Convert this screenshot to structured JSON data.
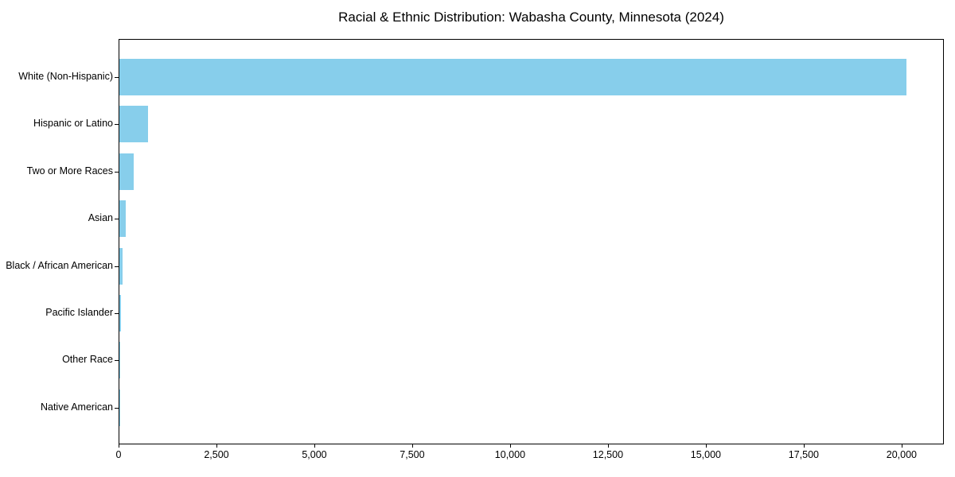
{
  "page": {
    "background_color": "#ffffff"
  },
  "chart_data": {
    "type": "bar",
    "orientation": "horizontal",
    "title": "Racial & Ethnic Distribution: Wabasha County, Minnesota (2024)",
    "categories": [
      "White (Non-Hispanic)",
      "Hispanic or Latino",
      "Two or More Races",
      "Asian",
      "Black / African American",
      "Pacific Islander",
      "Other Race",
      "Native American"
    ],
    "values": [
      20100,
      740,
      370,
      155,
      80,
      40,
      15,
      10
    ],
    "xlabel": "",
    "ylabel": "",
    "xlim": [
      0,
      21080
    ],
    "xticks": [
      0,
      2500,
      5000,
      7500,
      10000,
      12500,
      15000,
      17500,
      20000
    ],
    "xtick_labels": [
      "0",
      "2,500",
      "5,000",
      "7,500",
      "10,000",
      "12,500",
      "15,000",
      "17,500",
      "20,000"
    ],
    "bar_color": "#87CEEB",
    "axis_color": "#000000",
    "text_color": "#000000",
    "grid": false,
    "legend_position": "none"
  }
}
